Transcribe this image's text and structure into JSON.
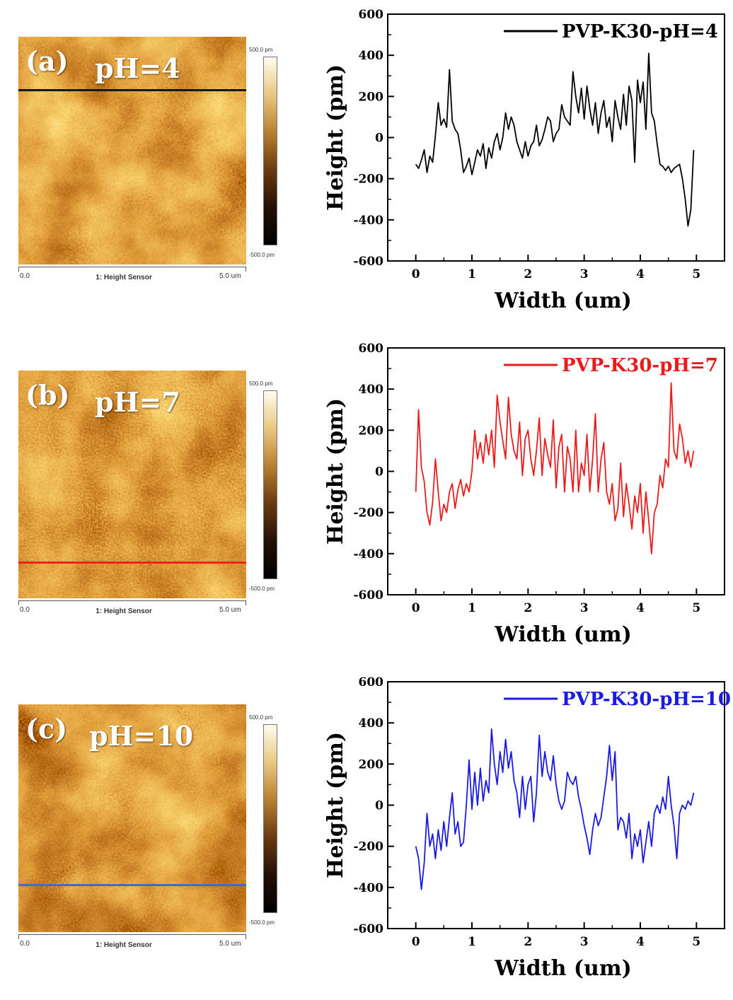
{
  "panels": [
    {
      "letter": "(a)",
      "ph_label": "pH=4",
      "scan_line_color": "#0a1a1a",
      "scan_line_position": 0.23,
      "colorbar": {
        "max": "500.0 pm",
        "min": "-500.0 pm"
      },
      "axis": {
        "start": "0.0",
        "title": "1: Height Sensor",
        "end": "5.0 um"
      }
    },
    {
      "letter": "(b)",
      "ph_label": "pH=7",
      "scan_line_color": "#ee2020",
      "scan_line_position": 0.84,
      "colorbar": {
        "max": "500.0 pm",
        "min": "-500.0 pm"
      },
      "axis": {
        "start": "0.0",
        "title": "1: Height Sensor",
        "end": "5.0 um"
      }
    },
    {
      "letter": "(c)",
      "ph_label": "pH=10",
      "scan_line_color": "#3c6ad8",
      "scan_line_position": 0.79,
      "colorbar": {
        "max": "500.0 pm",
        "min": "-500.0 pm"
      },
      "axis": {
        "start": "0.0",
        "title": "1: Height Sensor",
        "end": "5.0 um"
      }
    }
  ],
  "chart_data": [
    {
      "type": "line",
      "xlabel": "Width (um)",
      "ylabel": "Height (pm)",
      "xlim": [
        -0.5,
        5.5
      ],
      "ylim": [
        -600,
        600
      ],
      "xticks": [
        0,
        1,
        2,
        3,
        4,
        5
      ],
      "yticks": [
        -600,
        -400,
        -200,
        0,
        200,
        400,
        600
      ],
      "legend_position": "top-right",
      "series": [
        {
          "name": "PVP-K30-pH=4",
          "color": "#000000",
          "x": [
            0.0,
            0.05,
            0.1,
            0.15,
            0.2,
            0.25,
            0.3,
            0.35,
            0.4,
            0.45,
            0.5,
            0.55,
            0.6,
            0.65,
            0.7,
            0.75,
            0.8,
            0.85,
            0.9,
            0.95,
            1.0,
            1.05,
            1.1,
            1.15,
            1.2,
            1.25,
            1.3,
            1.35,
            1.4,
            1.45,
            1.5,
            1.55,
            1.6,
            1.65,
            1.7,
            1.75,
            1.8,
            1.85,
            1.9,
            1.95,
            2.0,
            2.05,
            2.1,
            2.15,
            2.2,
            2.25,
            2.3,
            2.35,
            2.4,
            2.45,
            2.5,
            2.55,
            2.6,
            2.65,
            2.7,
            2.75,
            2.8,
            2.85,
            2.9,
            2.95,
            3.0,
            3.05,
            3.1,
            3.15,
            3.2,
            3.25,
            3.3,
            3.35,
            3.4,
            3.45,
            3.5,
            3.55,
            3.6,
            3.65,
            3.7,
            3.75,
            3.8,
            3.85,
            3.9,
            3.95,
            4.0,
            4.05,
            4.1,
            4.15,
            4.2,
            4.25,
            4.3,
            4.35,
            4.4,
            4.45,
            4.5,
            4.55,
            4.6,
            4.65,
            4.7,
            4.75,
            4.8,
            4.85,
            4.9,
            4.95
          ],
          "y": [
            -130,
            -150,
            -110,
            -60,
            -170,
            -90,
            -120,
            10,
            170,
            60,
            90,
            50,
            330,
            80,
            40,
            20,
            -60,
            -170,
            -140,
            -100,
            -180,
            -120,
            -60,
            -90,
            -30,
            -150,
            -50,
            -100,
            -20,
            20,
            -60,
            0,
            120,
            40,
            100,
            60,
            -20,
            -60,
            -100,
            -20,
            -90,
            -40,
            -20,
            60,
            -40,
            -10,
            40,
            100,
            80,
            -20,
            20,
            40,
            160,
            100,
            80,
            60,
            320,
            200,
            120,
            240,
            90,
            250,
            140,
            60,
            170,
            20,
            120,
            180,
            50,
            100,
            -20,
            180,
            100,
            40,
            210,
            60,
            250,
            180,
            -120,
            280,
            170,
            270,
            40,
            410,
            120,
            80,
            -30,
            -130,
            -140,
            -160,
            -140,
            -170,
            -150,
            -140,
            -130,
            -200,
            -300,
            -430,
            -350,
            -60
          ]
        }
      ]
    },
    {
      "type": "line",
      "xlabel": "Width (um)",
      "ylabel": "Height (pm)",
      "xlim": [
        -0.5,
        5.5
      ],
      "ylim": [
        -600,
        600
      ],
      "xticks": [
        0,
        1,
        2,
        3,
        4,
        5
      ],
      "yticks": [
        -600,
        -400,
        -200,
        0,
        200,
        400,
        600
      ],
      "legend_position": "top-right",
      "series": [
        {
          "name": "PVP-K30-pH=7",
          "color": "#e81c1c",
          "x": [
            0.0,
            0.05,
            0.1,
            0.15,
            0.2,
            0.25,
            0.3,
            0.35,
            0.4,
            0.45,
            0.5,
            0.55,
            0.6,
            0.65,
            0.7,
            0.75,
            0.8,
            0.85,
            0.9,
            0.95,
            1.0,
            1.05,
            1.1,
            1.15,
            1.2,
            1.25,
            1.3,
            1.35,
            1.4,
            1.45,
            1.5,
            1.55,
            1.6,
            1.65,
            1.7,
            1.75,
            1.8,
            1.85,
            1.9,
            1.95,
            2.0,
            2.05,
            2.1,
            2.15,
            2.2,
            2.25,
            2.3,
            2.35,
            2.4,
            2.45,
            2.5,
            2.55,
            2.6,
            2.65,
            2.7,
            2.75,
            2.8,
            2.85,
            2.9,
            2.95,
            3.0,
            3.05,
            3.1,
            3.15,
            3.2,
            3.25,
            3.3,
            3.35,
            3.4,
            3.45,
            3.5,
            3.55,
            3.6,
            3.65,
            3.7,
            3.75,
            3.8,
            3.85,
            3.9,
            3.95,
            4.0,
            4.05,
            4.1,
            4.15,
            4.2,
            4.25,
            4.3,
            4.35,
            4.4,
            4.45,
            4.5,
            4.55,
            4.6,
            4.65,
            4.7,
            4.75,
            4.8,
            4.85,
            4.9,
            4.95
          ],
          "y": [
            -100,
            300,
            20,
            -50,
            -200,
            -260,
            -150,
            60,
            -100,
            -240,
            -160,
            -200,
            -100,
            -60,
            -180,
            -90,
            -40,
            -120,
            -60,
            -100,
            0,
            200,
            60,
            140,
            40,
            180,
            80,
            200,
            20,
            370,
            240,
            150,
            60,
            360,
            180,
            100,
            60,
            240,
            -20,
            160,
            200,
            60,
            -20,
            100,
            260,
            -20,
            160,
            80,
            20,
            250,
            -80,
            120,
            180,
            -100,
            120,
            60,
            -100,
            200,
            -100,
            40,
            -20,
            180,
            -100,
            60,
            280,
            -100,
            60,
            140,
            -100,
            -160,
            -60,
            -240,
            -180,
            40,
            -220,
            -60,
            -160,
            -280,
            -120,
            -200,
            -60,
            -300,
            -100,
            -240,
            -400,
            -200,
            -160,
            -20,
            -80,
            60,
            20,
            430,
            100,
            60,
            230,
            160,
            40,
            100,
            20,
            100
          ]
        }
      ]
    },
    {
      "type": "line",
      "xlabel": "Width (um)",
      "ylabel": "Height (pm)",
      "xlim": [
        -0.5,
        5.5
      ],
      "ylim": [
        -600,
        600
      ],
      "xticks": [
        0,
        1,
        2,
        3,
        4,
        5
      ],
      "yticks": [
        -600,
        -400,
        -200,
        0,
        200,
        400,
        600
      ],
      "legend_position": "top-right",
      "series": [
        {
          "name": "PVP-K30-pH=10",
          "color": "#1a1ae0",
          "x": [
            0.0,
            0.05,
            0.1,
            0.15,
            0.2,
            0.25,
            0.3,
            0.35,
            0.4,
            0.45,
            0.5,
            0.55,
            0.6,
            0.65,
            0.7,
            0.75,
            0.8,
            0.85,
            0.9,
            0.95,
            1.0,
            1.05,
            1.1,
            1.15,
            1.2,
            1.25,
            1.3,
            1.35,
            1.4,
            1.45,
            1.5,
            1.55,
            1.6,
            1.65,
            1.7,
            1.75,
            1.8,
            1.85,
            1.9,
            1.95,
            2.0,
            2.05,
            2.1,
            2.15,
            2.2,
            2.25,
            2.3,
            2.35,
            2.4,
            2.45,
            2.5,
            2.55,
            2.6,
            2.65,
            2.7,
            2.75,
            2.8,
            2.85,
            2.9,
            2.95,
            3.0,
            3.05,
            3.1,
            3.15,
            3.2,
            3.25,
            3.3,
            3.35,
            3.4,
            3.45,
            3.5,
            3.55,
            3.6,
            3.65,
            3.7,
            3.75,
            3.8,
            3.85,
            3.9,
            3.95,
            4.0,
            4.05,
            4.1,
            4.15,
            4.2,
            4.25,
            4.3,
            4.35,
            4.4,
            4.45,
            4.5,
            4.55,
            4.6,
            4.65,
            4.7,
            4.75,
            4.8,
            4.85,
            4.9,
            4.95
          ],
          "y": [
            -200,
            -260,
            -410,
            -280,
            -40,
            -200,
            -140,
            -260,
            -120,
            -220,
            -80,
            -200,
            -60,
            60,
            -140,
            -80,
            -200,
            -180,
            0,
            220,
            -20,
            160,
            0,
            180,
            20,
            120,
            60,
            370,
            200,
            100,
            260,
            160,
            320,
            180,
            260,
            120,
            60,
            -60,
            140,
            -20,
            100,
            140,
            -80,
            60,
            340,
            140,
            260,
            160,
            120,
            240,
            100,
            20,
            -20,
            20,
            160,
            120,
            100,
            140,
            40,
            -20,
            -100,
            -160,
            -240,
            -120,
            -40,
            -100,
            -60,
            40,
            140,
            290,
            120,
            260,
            -120,
            -60,
            -80,
            -160,
            -40,
            -260,
            -140,
            -200,
            -120,
            -280,
            -180,
            -80,
            -200,
            -40,
            0,
            -40,
            40,
            -20,
            140,
            0,
            -100,
            -260,
            -40,
            0,
            -20,
            20,
            0,
            60
          ]
        }
      ]
    }
  ]
}
